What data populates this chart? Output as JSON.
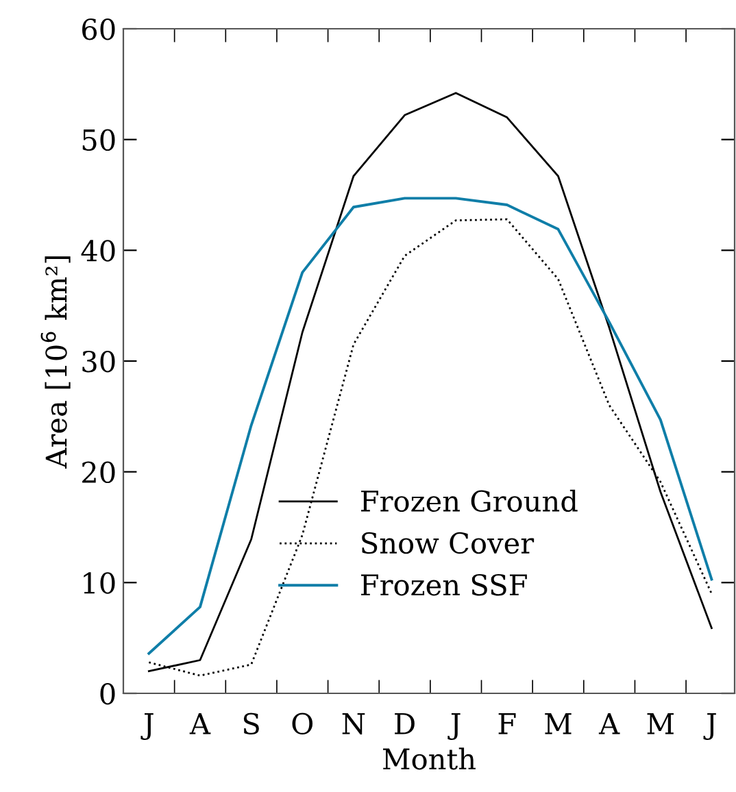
{
  "chart_data": {
    "type": "line",
    "xlabel": "Month",
    "ylabel": "Area [10$^{6}$ km²]",
    "categories": [
      "J",
      "A",
      "S",
      "O",
      "N",
      "D",
      "J",
      "F",
      "M",
      "A",
      "M",
      "J"
    ],
    "series": [
      {
        "name": "Frozen Ground",
        "color": "#000000",
        "line_style": "solid",
        "values": [
          2.0,
          3.0,
          13.9,
          32.6,
          46.7,
          52.2,
          54.2,
          52.0,
          46.7,
          33,
          18.2,
          5.9
        ]
      },
      {
        "name": "Snow Cover",
        "color": "#000000",
        "line_style": "dotted",
        "values": [
          2.8,
          1.6,
          2.6,
          14.3,
          31.5,
          39.5,
          42.7,
          42.8,
          37.4,
          26,
          19.1,
          9.0
        ]
      },
      {
        "name": "Frozen SSF",
        "color": "#0f7ea8",
        "line_style": "solid",
        "values": [
          3.6,
          7.8,
          24.2,
          38.0,
          43.9,
          44.7,
          44.7,
          44.1,
          41.9,
          33.5,
          24.7,
          10.3
        ]
      }
    ],
    "ylim": [
      0,
      60
    ],
    "yticks": [
      0,
      10,
      20,
      30,
      40,
      50,
      60
    ],
    "grid": false,
    "legend": "bottom",
    "marker": "none"
  }
}
